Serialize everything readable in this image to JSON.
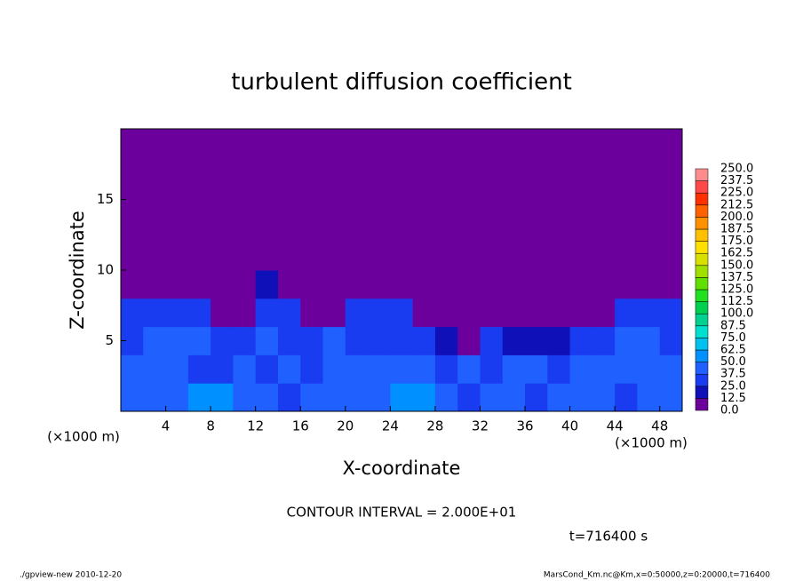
{
  "chart_data": {
    "type": "heatmap",
    "title": "turbulent diffusion coefficient",
    "x_label": "X-coordinate",
    "y_label": "Z-coordinate",
    "x_unit": "(×1000 m)",
    "y_unit": "(×1000 m)",
    "xlim": [
      0,
      50
    ],
    "ylim": [
      0,
      20
    ],
    "xticks": [
      4,
      8,
      12,
      16,
      20,
      24,
      28,
      32,
      36,
      40,
      44,
      48
    ],
    "yticks": [
      5,
      10,
      15
    ],
    "xbins": [
      0,
      2,
      4,
      6,
      8,
      10,
      12,
      14,
      16,
      18,
      20,
      22,
      24,
      26,
      28,
      30,
      32,
      34,
      36,
      38,
      40,
      42,
      44,
      46,
      48,
      50
    ],
    "ybins": [
      0,
      2,
      4,
      6,
      8,
      10,
      12,
      14,
      16,
      18,
      20
    ],
    "values": [
      [
        40,
        40,
        45,
        55,
        50,
        40,
        40,
        35,
        40,
        45,
        40,
        40,
        60,
        55,
        40,
        35,
        40,
        40,
        35,
        40,
        40,
        45,
        35,
        40,
        40
      ],
      [
        40,
        45,
        40,
        35,
        30,
        40,
        35,
        40,
        35,
        40,
        45,
        40,
        40,
        45,
        35,
        40,
        35,
        45,
        40,
        35,
        40,
        40,
        45,
        40,
        40
      ],
      [
        35,
        40,
        45,
        40,
        30,
        35,
        40,
        30,
        35,
        40,
        35,
        30,
        30,
        25,
        20,
        10,
        30,
        20,
        15,
        20,
        25,
        35,
        40,
        40,
        35
      ],
      [
        30,
        35,
        30,
        25,
        5,
        5,
        30,
        30,
        5,
        5,
        30,
        30,
        30,
        5,
        5,
        5,
        5,
        5,
        5,
        5,
        5,
        5,
        30,
        30,
        30
      ],
      [
        2,
        2,
        2,
        2,
        2,
        2,
        15,
        2,
        2,
        2,
        2,
        2,
        2,
        2,
        2,
        2,
        2,
        2,
        2,
        2,
        2,
        2,
        2,
        2,
        2
      ],
      [
        2,
        2,
        2,
        2,
        2,
        2,
        2,
        2,
        2,
        2,
        2,
        2,
        2,
        2,
        2,
        2,
        2,
        2,
        2,
        2,
        2,
        2,
        2,
        2,
        2
      ],
      [
        2,
        2,
        2,
        2,
        2,
        2,
        2,
        2,
        2,
        2,
        2,
        2,
        2,
        2,
        2,
        2,
        2,
        2,
        2,
        2,
        2,
        2,
        2,
        2,
        2
      ],
      [
        2,
        2,
        2,
        2,
        2,
        2,
        2,
        2,
        2,
        2,
        2,
        2,
        2,
        2,
        2,
        2,
        2,
        2,
        2,
        2,
        2,
        2,
        2,
        2,
        2
      ],
      [
        2,
        2,
        2,
        2,
        2,
        2,
        2,
        2,
        2,
        2,
        2,
        2,
        2,
        2,
        2,
        2,
        2,
        2,
        2,
        2,
        2,
        2,
        2,
        2,
        2
      ],
      [
        2,
        2,
        2,
        2,
        2,
        2,
        2,
        2,
        2,
        2,
        2,
        2,
        2,
        2,
        2,
        2,
        2,
        2,
        2,
        2,
        2,
        2,
        2,
        2,
        2
      ]
    ],
    "colorbar": {
      "ticks": [
        {
          "value": 0,
          "label": "0.0"
        },
        {
          "value": 12.5,
          "label": "12.5"
        },
        {
          "value": 25,
          "label": "25.0"
        },
        {
          "value": 37.5,
          "label": "37.5"
        },
        {
          "value": 50,
          "label": "50.0"
        },
        {
          "value": 62.5,
          "label": "62.5"
        },
        {
          "value": 75,
          "label": "75.0"
        },
        {
          "value": 87.5,
          "label": "87.5"
        },
        {
          "value": 100,
          "label": "100.0"
        },
        {
          "value": 112.5,
          "label": "112.5"
        },
        {
          "value": 125,
          "label": "125.0"
        },
        {
          "value": 137.5,
          "label": "137.5"
        },
        {
          "value": 150,
          "label": "150.0"
        },
        {
          "value": 162.5,
          "label": "162.5"
        },
        {
          "value": 175,
          "label": "175.0"
        },
        {
          "value": 187.5,
          "label": "187.5"
        },
        {
          "value": 200,
          "label": "200.0"
        },
        {
          "value": 212.5,
          "label": "212.5"
        },
        {
          "value": 225,
          "label": "225.0"
        },
        {
          "value": 237.5,
          "label": "237.5"
        },
        {
          "value": 250,
          "label": "250.0"
        }
      ],
      "colors": [
        "#6c009c",
        "#1010b8",
        "#1a3cf0",
        "#2060ff",
        "#0090ff",
        "#00c0f0",
        "#00e0d0",
        "#00d090",
        "#00d050",
        "#20e020",
        "#60e000",
        "#a0e000",
        "#d8e000",
        "#ffe000",
        "#ffc000",
        "#ff9000",
        "#ff6000",
        "#ff3000",
        "#ff4848",
        "#ff8c8c"
      ]
    },
    "annotation": "CONTOUR INTERVAL = 2.000E+01",
    "time_label": "t=716400 s",
    "footer_left": "./gpview-new  2010-12-20",
    "footer_right": "MarsCond_Km.nc@Km,x=0:50000,z=0:20000,t=716400"
  }
}
